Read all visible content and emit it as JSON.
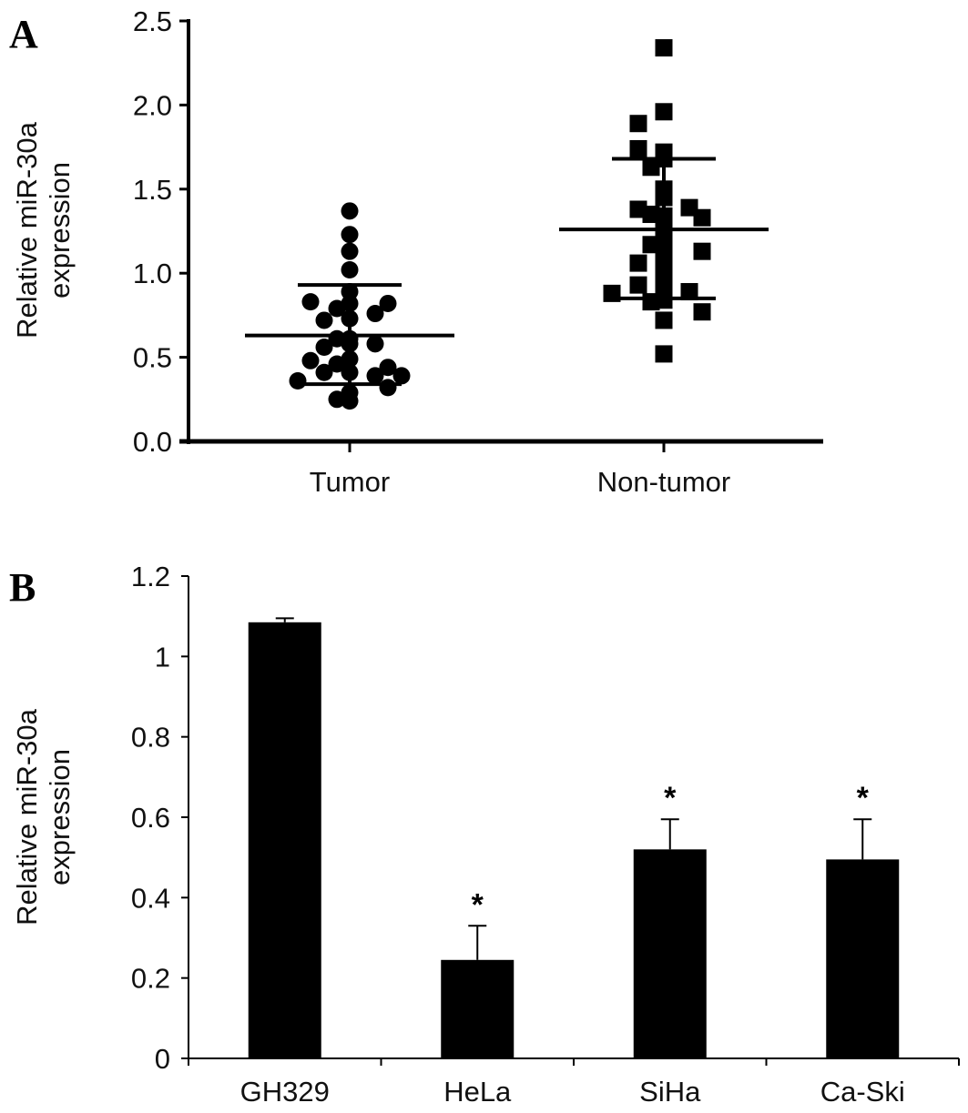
{
  "chart_data": [
    {
      "panel_label": "A",
      "type": "scatter",
      "ylabel_lines": [
        "Relative miR-30a",
        "expression"
      ],
      "ylim": [
        0,
        2.5
      ],
      "yticks": [
        "0.0",
        "0.5",
        "1.0",
        "1.5",
        "2.0",
        "2.5"
      ],
      "categories": [
        "Tumor",
        "Non-tumor"
      ],
      "grid": false,
      "series": [
        {
          "category": "Tumor",
          "marker": "circle",
          "values": [
            1.37,
            1.23,
            1.13,
            1.02,
            0.89,
            0.82,
            0.79,
            0.73,
            0.72,
            0.76,
            0.82,
            0.83,
            0.61,
            0.58,
            0.56,
            0.58,
            0.61,
            0.49,
            0.46,
            0.41,
            0.41,
            0.44,
            0.48,
            0.39,
            0.36,
            0.39,
            0.29,
            0.24,
            0.25,
            0.32
          ],
          "mean": 0.63,
          "sd_upper": 0.93,
          "sd_lower": 0.34
        },
        {
          "category": "Non-tumor",
          "marker": "square",
          "values": [
            2.34,
            1.96,
            1.89,
            1.72,
            1.74,
            1.68,
            1.63,
            1.5,
            1.45,
            1.38,
            1.34,
            1.39,
            1.35,
            1.33,
            1.25,
            1.15,
            1.17,
            1.13,
            1.08,
            1.06,
            1.02,
            0.93,
            0.93,
            0.89,
            0.88,
            0.84,
            0.83,
            0.77,
            0.72,
            0.52
          ],
          "mean": 1.26,
          "sd_upper": 1.68,
          "sd_lower": 0.85
        }
      ]
    },
    {
      "panel_label": "B",
      "type": "bar",
      "ylabel_lines": [
        "Relative miR-30a",
        "expression"
      ],
      "ylim": [
        0,
        1.2
      ],
      "yticks": [
        "0",
        "0.2",
        "0.4",
        "0.6",
        "0.8",
        "1",
        "1.2"
      ],
      "categories": [
        "GH329",
        "HeLa",
        "SiHa",
        "Ca-Ski"
      ],
      "values": [
        1.085,
        0.245,
        0.52,
        0.495
      ],
      "error_upper": [
        1.095,
        0.33,
        0.595,
        0.595
      ],
      "annotations": [
        "",
        "*",
        "*",
        "*"
      ],
      "bar_color": "#000000",
      "grid": false
    }
  ]
}
